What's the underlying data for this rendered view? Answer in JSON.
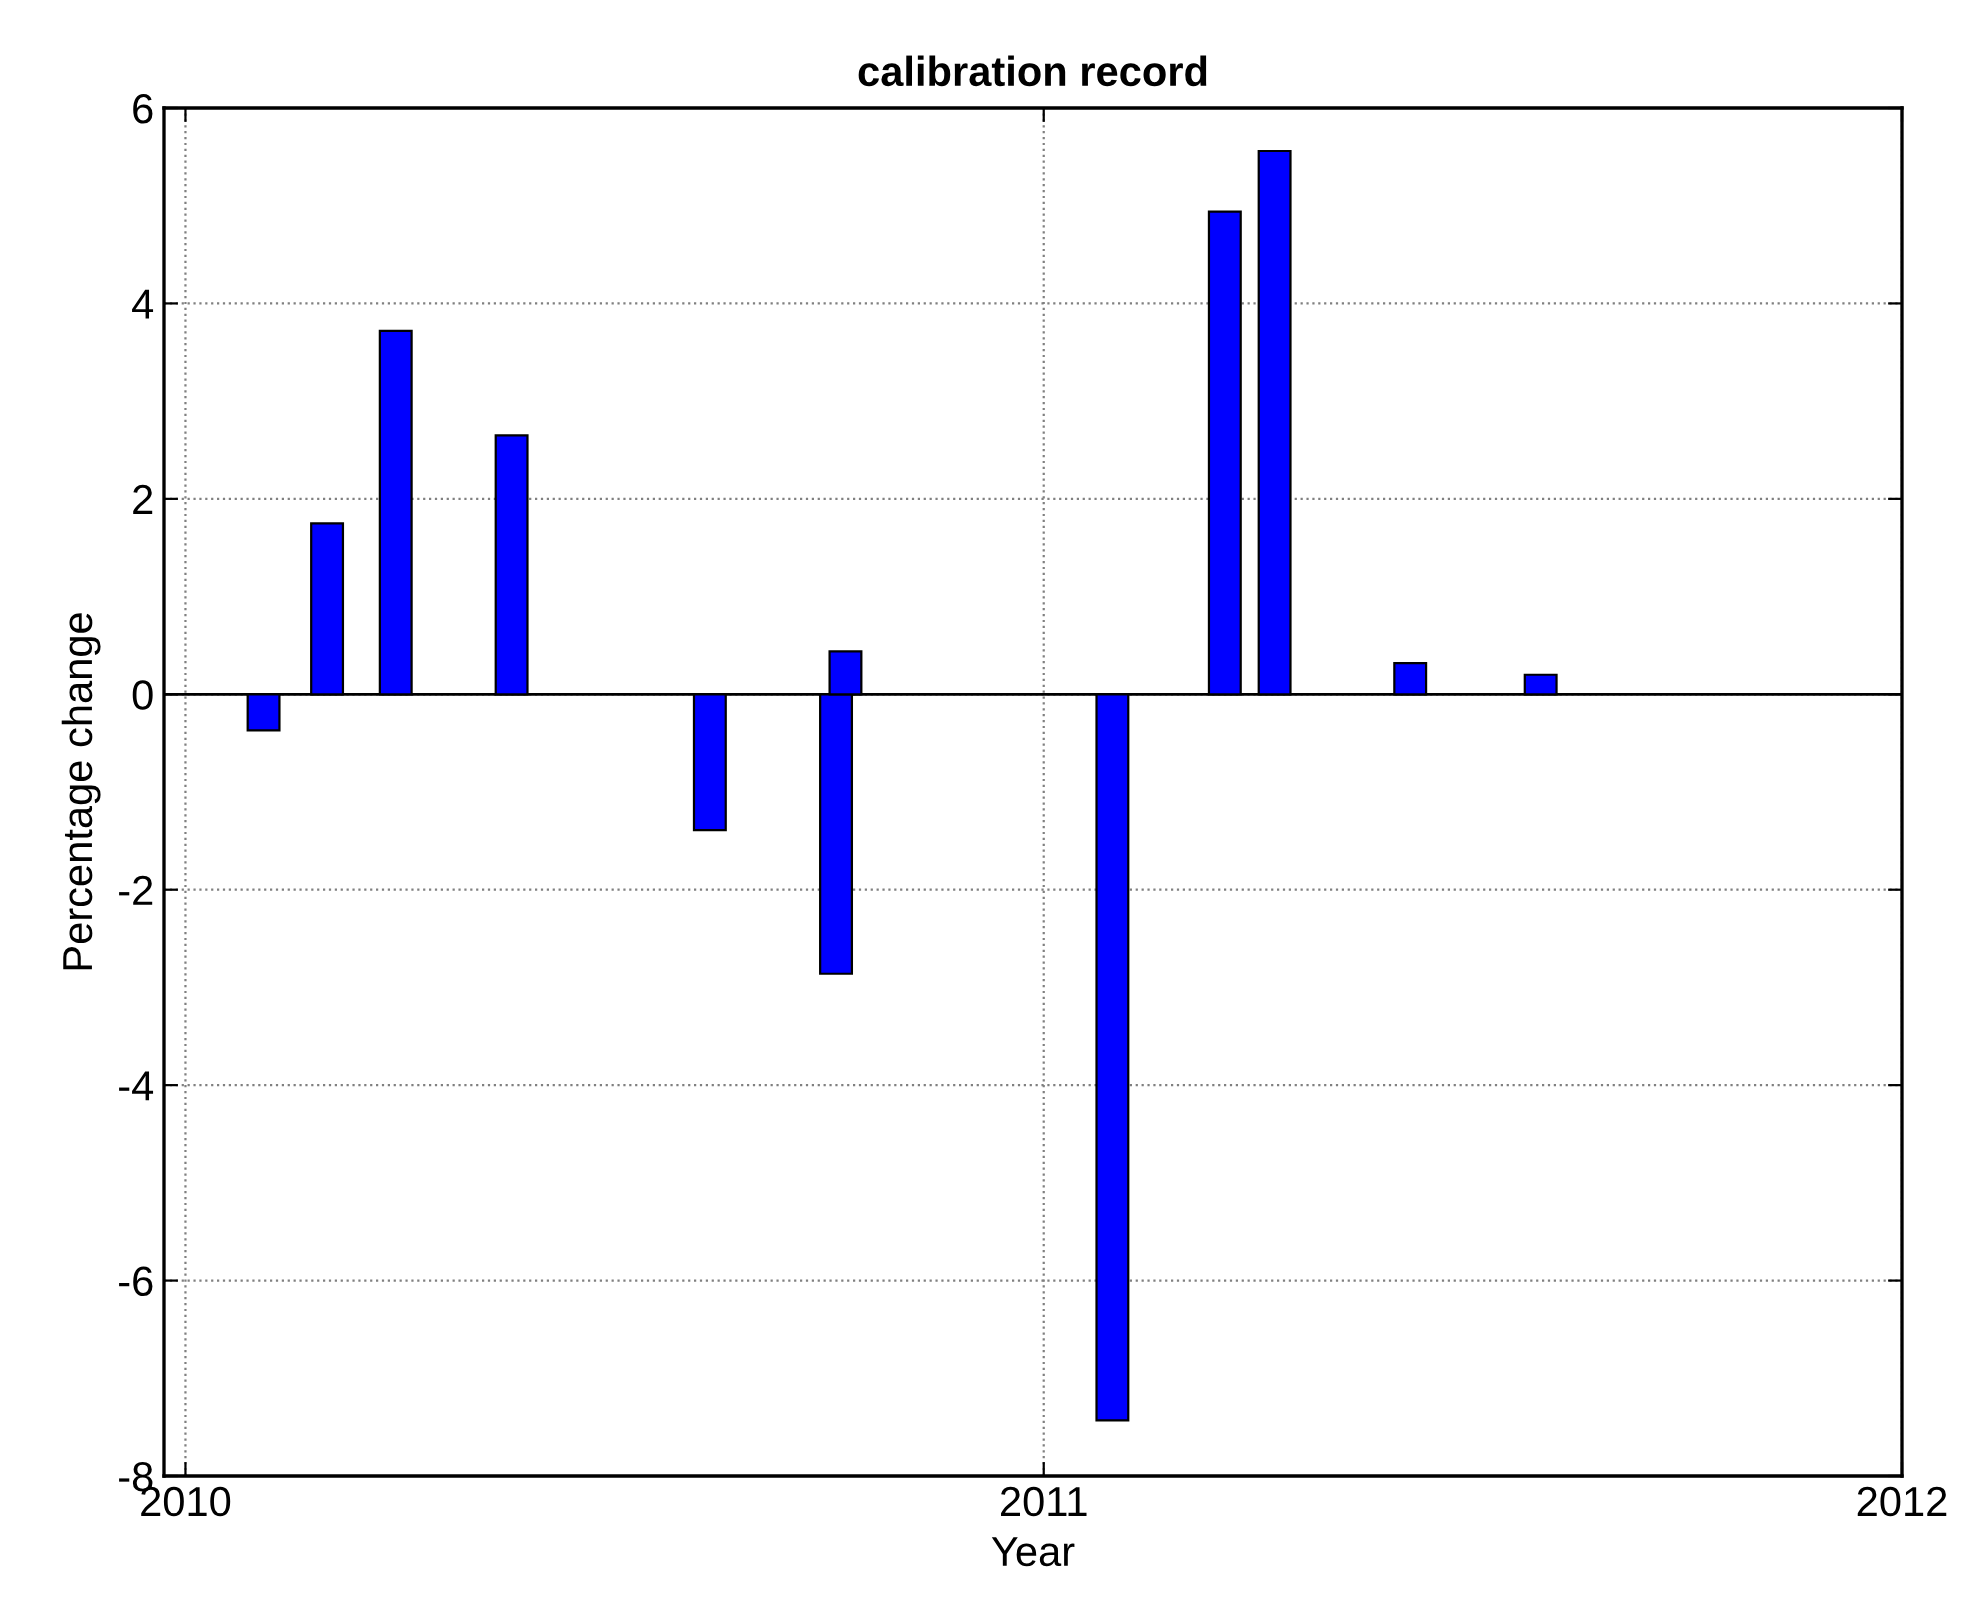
{
  "chart_data": {
    "type": "bar",
    "title": "calibration record",
    "xlabel": "Year",
    "ylabel": "Percentage change",
    "x": [
      2010.091,
      2010.165,
      2010.245,
      2010.38,
      2010.611,
      2010.758,
      2010.769,
      2011.08,
      2011.211,
      2011.269,
      2011.427,
      2011.579
    ],
    "values": [
      -0.37,
      1.75,
      3.72,
      2.65,
      -1.39,
      -2.86,
      0.44,
      -7.43,
      4.94,
      5.56,
      0.32,
      0.2
    ],
    "color": "#0000ff",
    "xlim": [
      2009.975,
      2012
    ],
    "xticks": [
      2010,
      2011,
      2012
    ],
    "ylim": [
      -8,
      6
    ],
    "yticks": [
      -8,
      -6,
      -4,
      -2,
      0,
      2,
      4,
      6
    ],
    "grid": true,
    "ref_lines": [
      {
        "axis": "y",
        "value": 0,
        "color": "#000000"
      }
    ]
  }
}
